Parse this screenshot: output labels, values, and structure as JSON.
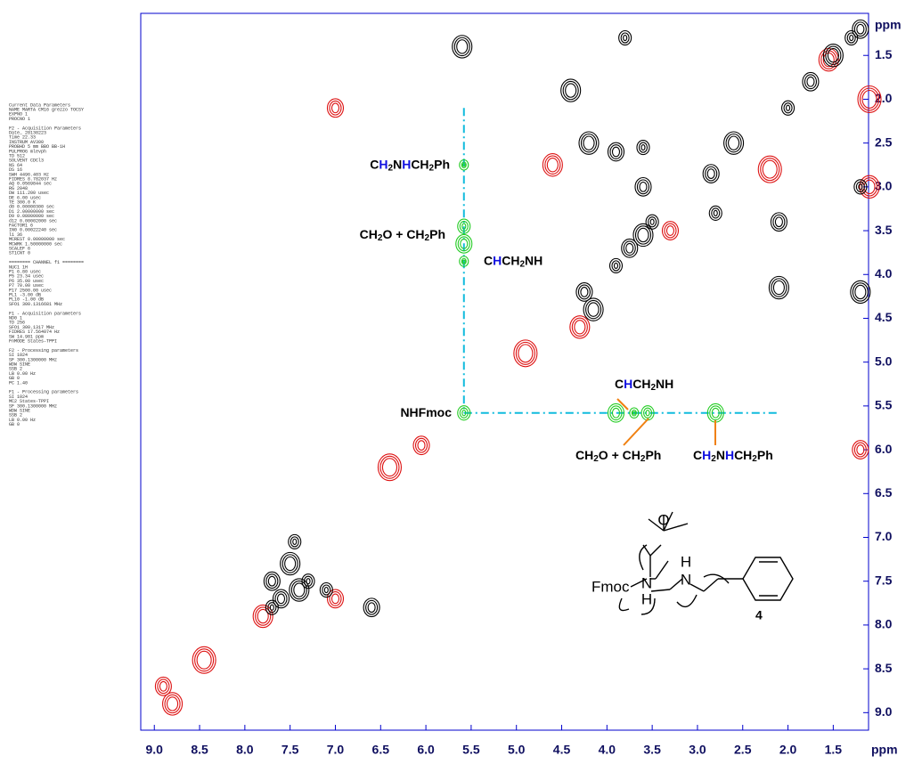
{
  "chart_data": {
    "type": "nmr2d",
    "x_unit": "ppm",
    "y_unit": "ppm",
    "xlim": [
      9.15,
      1.11
    ],
    "ylim": [
      1.02,
      9.2
    ],
    "xticks": [
      {
        "value": 9,
        "label": "9.0"
      },
      8.5,
      {
        "value": 8,
        "label": "8.0"
      },
      7.5,
      {
        "value": 7,
        "label": "7.0"
      },
      6.5,
      {
        "value": 6,
        "label": "6.0"
      },
      5.5,
      {
        "value": 5,
        "label": "5.0"
      },
      4.5,
      {
        "value": 4,
        "label": "4.0"
      },
      3.5,
      {
        "value": 3,
        "label": "3.0"
      },
      2.5,
      {
        "value": 2,
        "label": "2.0"
      },
      1.5
    ],
    "yticks": [
      1.5,
      {
        "value": 2,
        "label": "2.0"
      },
      2.5,
      {
        "value": 3,
        "label": "3.0"
      },
      3.5,
      {
        "value": 4,
        "label": "4.0"
      },
      4.5,
      {
        "value": 5,
        "label": "5.0"
      },
      5.5,
      {
        "value": 6,
        "label": "6.0"
      },
      6.5,
      {
        "value": 7,
        "label": "7.0"
      },
      7.5,
      {
        "value": 8,
        "label": "8.0"
      },
      8.5,
      {
        "value": 9,
        "label": "9.0"
      }
    ],
    "axis_color": "#0000cc",
    "positive_color": "#000000",
    "negative_color": "#dd1111",
    "highlight_color": "#22cc22",
    "guide_color": "#11bbdd",
    "pointer_color": "#f08010",
    "positive_peaks": [
      [
        7.7,
        7.8
      ],
      [
        7.6,
        7.7
      ],
      [
        7.4,
        7.6
      ],
      [
        7.3,
        7.5
      ],
      [
        7.7,
        7.5
      ],
      [
        7.5,
        7.3
      ],
      [
        7.45,
        7.05
      ],
      [
        4.25,
        4.2
      ],
      [
        4.15,
        4.4
      ],
      [
        3.9,
        3.9
      ],
      [
        3.75,
        3.7
      ],
      [
        3.6,
        3.55
      ],
      [
        3.5,
        3.4
      ],
      [
        2.85,
        2.85
      ],
      [
        2.6,
        2.5
      ],
      [
        2.0,
        2.1
      ],
      [
        1.75,
        1.8
      ],
      [
        1.5,
        1.5
      ],
      [
        1.3,
        1.3
      ],
      [
        1.2,
        1.2
      ],
      [
        1.2,
        4.2
      ],
      [
        1.2,
        3.0
      ],
      [
        3.9,
        2.6
      ],
      [
        4.2,
        2.5
      ],
      [
        3.6,
        2.55
      ],
      [
        2.1,
        3.4
      ],
      [
        2.1,
        4.15
      ],
      [
        2.8,
        3.3
      ],
      [
        3.6,
        3.0
      ],
      [
        4.4,
        1.9
      ],
      [
        7.1,
        7.6
      ],
      [
        6.6,
        7.8
      ],
      [
        5.6,
        1.4
      ],
      [
        3.8,
        1.3
      ]
    ],
    "negative_peaks": [
      [
        8.9,
        8.7
      ],
      [
        8.8,
        8.9
      ],
      [
        8.45,
        8.4
      ],
      [
        6.05,
        5.95
      ],
      [
        4.3,
        4.6
      ],
      [
        4.9,
        4.9
      ],
      [
        3.3,
        3.5
      ],
      [
        1.55,
        1.55
      ],
      [
        2.2,
        2.8
      ],
      [
        1.2,
        6.0
      ],
      [
        1.1,
        3.0
      ],
      [
        1.1,
        2.0
      ],
      [
        7.0,
        2.1
      ],
      [
        4.6,
        2.75
      ],
      [
        6.4,
        6.2
      ],
      [
        7.0,
        7.7
      ],
      [
        7.8,
        7.9
      ]
    ],
    "highlighted_peaks": [
      [
        5.58,
        2.75
      ],
      [
        5.58,
        3.45
      ],
      [
        5.58,
        3.65
      ],
      [
        5.58,
        3.85
      ],
      [
        5.58,
        5.58
      ],
      [
        3.9,
        5.58
      ],
      [
        3.7,
        5.58
      ],
      [
        3.55,
        5.58
      ],
      [
        2.8,
        5.58
      ]
    ],
    "guides": [
      [
        [
          5.58,
          2.1
        ],
        [
          5.58,
          5.58
        ]
      ],
      [
        [
          5.58,
          5.58
        ],
        [
          2.12,
          5.58
        ]
      ]
    ],
    "annotations": [
      [
        {
          "text": "C"
        },
        {
          "text": "H",
          "color": "#1010e0"
        },
        {
          "text": "2",
          "sub": true
        },
        {
          "text": "N"
        },
        {
          "text": "H",
          "color": "#1010e0"
        },
        {
          "text": "CH"
        },
        {
          "text": "2",
          "sub": true
        },
        {
          "text": "Ph"
        }
      ],
      [
        {
          "text": "CH"
        },
        {
          "text": "2",
          "sub": true
        },
        {
          "text": "O + CH"
        },
        {
          "text": "2",
          "sub": true
        },
        {
          "text": "Ph"
        }
      ],
      [
        {
          "text": "C"
        },
        {
          "text": "H",
          "color": "#1010e0"
        },
        {
          "text": "CH"
        },
        {
          "text": "2",
          "sub": true
        },
        {
          "text": "NH"
        }
      ],
      [
        {
          "text": "NHFmoc"
        }
      ],
      [
        {
          "text": "C"
        },
        {
          "text": "H",
          "color": "#1010e0"
        },
        {
          "text": "CH"
        },
        {
          "text": "2",
          "sub": true
        },
        {
          "text": "NH"
        }
      ],
      [
        {
          "text": "CH"
        },
        {
          "text": "2",
          "sub": true
        },
        {
          "text": "O + CH"
        },
        {
          "text": "2",
          "sub": true
        },
        {
          "text": "Ph"
        }
      ],
      [
        {
          "text": "C"
        },
        {
          "text": "H",
          "color": "#1010e0"
        },
        {
          "text": "2",
          "sub": true
        },
        {
          "text": "N"
        },
        {
          "text": "H",
          "color": "#1010e0"
        },
        {
          "text": "CH"
        },
        {
          "text": "2",
          "sub": true
        },
        {
          "text": "Ph"
        }
      ]
    ]
  },
  "molecule": {
    "label": "4",
    "fmoc": "Fmoc",
    "n1": "N",
    "h1": "H",
    "n2": "N",
    "h2": "H",
    "o": "O"
  },
  "parameters": [
    "Current Data Parameters",
    "NAME      MARTA CM16 grezzo TOCSY",
    "EXPNO              1",
    "PROCNO             1",
    "",
    "F2 - Acquisition Parameters",
    "Date_          20130223",
    "Time             22.33",
    "INSTRUM          AV300",
    "PROBHD   5 mm BBO BB-1H",
    "PULPROG         mlevph",
    "TD                 512",
    "SOLVENT          CDCl3",
    "NS                  64",
    "DS                  16",
    "SWH          4496.403 Hz",
    "FIDRES       8.782037 Hz",
    "AQ          0.0569844 sec",
    "RG                2048",
    "DW             111.200 usec",
    "DE               6.00 usec",
    "TE               300.0 K",
    "d0          0.00000300 sec",
    "D1          2.00000000 sec",
    "D9          0.08000000 sec",
    "d12         0.00002000 sec",
    "FACTOR1              6",
    "IN0         0.00022240 sec",
    "l1                  36",
    "MCREST      0.00000000 sec",
    "MCWRK       1.50000000 sec",
    "SCALEF               6",
    "ST1CNT               0",
    "",
    "======== CHANNEL f1 ========",
    "NUC1                1H",
    "P1               6.80 usec",
    "P5              23.34 usec",
    "P6              35.00 usec",
    "P7              70.00 usec",
    "P17           2500.00 usec",
    "PL1              -3.00 dB",
    "PL10             -1.00 dB",
    "SFO1        300.1316681 MHz",
    "",
    "F1 - Acquisition parameters",
    "ND0                  1",
    "TD                 256",
    "SFO1          300.1317 MHz",
    "FIDRES       17.564074 Hz",
    "SW              14.981 ppm",
    "FnMODE        States-TPPI",
    "",
    "F2 - Processing parameters",
    "SI                1024",
    "SF         300.1300000 MHz",
    "WDW              SINE",
    "SSB                  2",
    "LB                0.00 Hz",
    "GB                   0",
    "PC                1.40",
    "",
    "F1 - Processing parameters",
    "SI                1024",
    "MC2           States-TPPI",
    "SF         300.1300000 MHz",
    "WDW              SINE",
    "SSB                  2",
    "LB                0.00 Hz",
    "GB                   0"
  ]
}
